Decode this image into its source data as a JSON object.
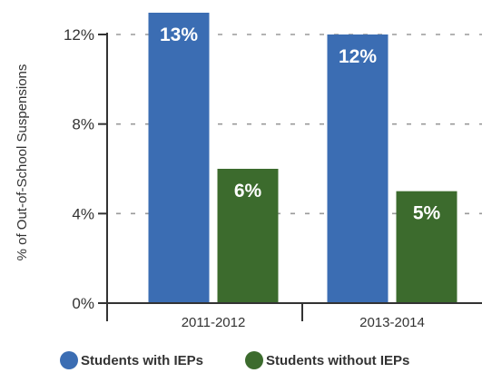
{
  "chart_data": {
    "type": "bar",
    "categories": [
      "2011-2012",
      "2013-2014"
    ],
    "series": [
      {
        "name": "Students with IEPs",
        "values": [
          13,
          12
        ],
        "labels": [
          "13%",
          "12%"
        ],
        "color": "#3b6db3"
      },
      {
        "name": "Students without IEPs",
        "values": [
          6,
          5
        ],
        "labels": [
          "6%",
          "5%"
        ],
        "color": "#3c6b2d"
      }
    ],
    "title": "",
    "xlabel": "",
    "ylabel": "% of Out-of-School Suspensions",
    "ylim": [
      0,
      12
    ],
    "yticks": [
      0,
      4,
      8,
      12
    ],
    "ytick_labels": [
      "0%",
      "4%",
      "8%",
      "12%"
    ],
    "grid": true,
    "grid_style": "dashed",
    "legend_position": "bottom"
  }
}
